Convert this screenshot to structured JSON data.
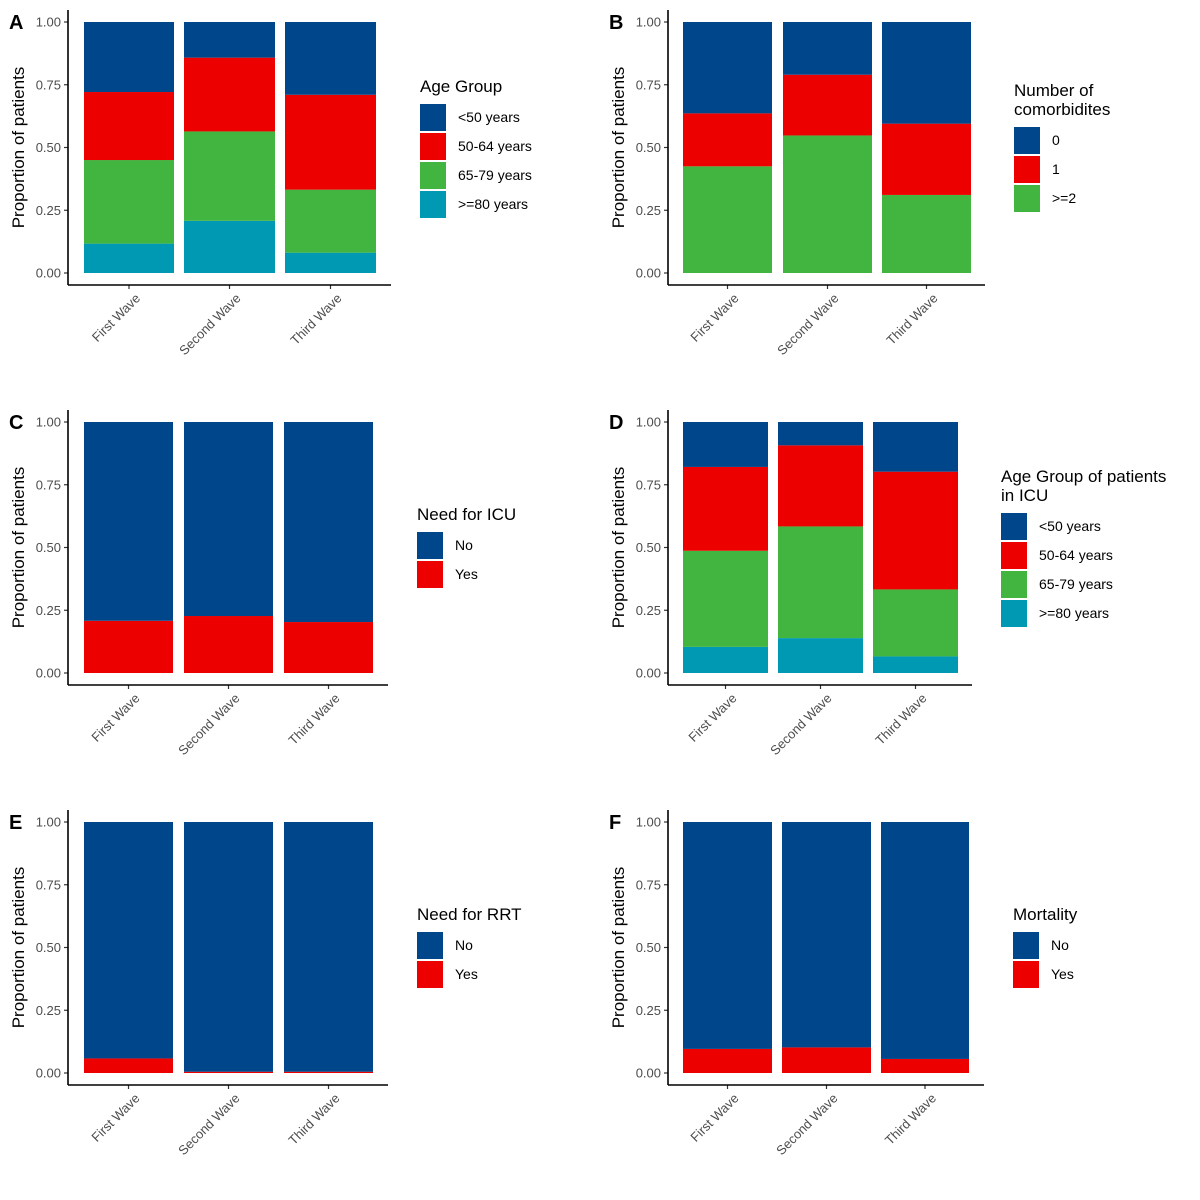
{
  "figure": {
    "palette": {
      "navy": "#00468B",
      "red": "#ED0000",
      "green": "#42B540",
      "teal": "#0099B4"
    }
  },
  "chart_data": [
    {
      "panel": "A",
      "type": "bar",
      "stacked": "fill",
      "title": "",
      "xlabel": "",
      "ylabel": "Proportion of patients",
      "ylim": [
        0,
        1
      ],
      "yticks": [
        "0.00",
        "0.25",
        "0.50",
        "0.75",
        "1.00"
      ],
      "categories": [
        "First Wave",
        "Second Wave",
        "Third Wave"
      ],
      "legend_title": "Age Group",
      "legend_position": "right",
      "series": [
        {
          "name": "<50 years",
          "color": "#00468B",
          "values": [
            0.279,
            0.142,
            0.29
          ]
        },
        {
          "name": "50-64 years",
          "color": "#ED0000",
          "values": [
            0.271,
            0.294,
            0.378
          ]
        },
        {
          "name": "65-79 years",
          "color": "#42B540",
          "values": [
            0.333,
            0.356,
            0.251
          ]
        },
        {
          "name": ">=80 years",
          "color": "#0099B4",
          "values": [
            0.117,
            0.208,
            0.081
          ]
        }
      ]
    },
    {
      "panel": "B",
      "type": "bar",
      "stacked": "fill",
      "title": "",
      "xlabel": "",
      "ylabel": "Proportion of patients",
      "ylim": [
        0,
        1
      ],
      "yticks": [
        "0.00",
        "0.25",
        "0.50",
        "0.75",
        "1.00"
      ],
      "categories": [
        "First Wave",
        "Second Wave",
        "Third Wave"
      ],
      "legend_title": "Number of\ncomorbidites",
      "legend_position": "right",
      "series": [
        {
          "name": "0",
          "color": "#00468B",
          "values": [
            0.364,
            0.21,
            0.405
          ]
        },
        {
          "name": "1",
          "color": "#ED0000",
          "values": [
            0.211,
            0.242,
            0.284
          ]
        },
        {
          "name": ">=2",
          "color": "#42B540",
          "values": [
            0.425,
            0.548,
            0.311
          ]
        }
      ]
    },
    {
      "panel": "C",
      "type": "bar",
      "stacked": "fill",
      "title": "",
      "xlabel": "",
      "ylabel": "Proportion of patients",
      "ylim": [
        0,
        1
      ],
      "yticks": [
        "0.00",
        "0.25",
        "0.50",
        "0.75",
        "1.00"
      ],
      "categories": [
        "First Wave",
        "Second Wave",
        "Third Wave"
      ],
      "legend_title": "Need for ICU",
      "legend_position": "right",
      "series": [
        {
          "name": "No",
          "color": "#00468B",
          "values": [
            0.792,
            0.773,
            0.797
          ]
        },
        {
          "name": "Yes",
          "color": "#ED0000",
          "values": [
            0.208,
            0.227,
            0.203
          ]
        }
      ]
    },
    {
      "panel": "D",
      "type": "bar",
      "stacked": "fill",
      "title": "",
      "xlabel": "",
      "ylabel": "Proportion of patients",
      "ylim": [
        0,
        1
      ],
      "yticks": [
        "0.00",
        "0.25",
        "0.50",
        "0.75",
        "1.00"
      ],
      "categories": [
        "First Wave",
        "Second Wave",
        "Third Wave"
      ],
      "legend_title": "Age Group of patients\n in ICU",
      "legend_position": "right",
      "series": [
        {
          "name": "<50 years",
          "color": "#00468B",
          "values": [
            0.179,
            0.093,
            0.198
          ]
        },
        {
          "name": "50-64 years",
          "color": "#ED0000",
          "values": [
            0.334,
            0.323,
            0.469
          ]
        },
        {
          "name": "65-79 years",
          "color": "#42B540",
          "values": [
            0.383,
            0.445,
            0.267
          ]
        },
        {
          "name": ">=80 years",
          "color": "#0099B4",
          "values": [
            0.104,
            0.139,
            0.066
          ]
        }
      ]
    },
    {
      "panel": "E",
      "type": "bar",
      "stacked": "fill",
      "title": "",
      "xlabel": "",
      "ylabel": "Proportion of patients",
      "ylim": [
        0,
        1
      ],
      "yticks": [
        "0.00",
        "0.25",
        "0.50",
        "0.75",
        "1.00"
      ],
      "categories": [
        "First Wave",
        "Second Wave",
        "Third Wave"
      ],
      "legend_title": "Need for RRT",
      "legend_position": "right",
      "series": [
        {
          "name": "No",
          "color": "#00468B",
          "values": [
            0.942,
            0.995,
            0.995
          ]
        },
        {
          "name": "Yes",
          "color": "#ED0000",
          "values": [
            0.058,
            0.005,
            0.005
          ]
        }
      ]
    },
    {
      "panel": "F",
      "type": "bar",
      "stacked": "fill",
      "title": "",
      "xlabel": "",
      "ylabel": "Proportion of patients",
      "ylim": [
        0,
        1
      ],
      "yticks": [
        "0.00",
        "0.25",
        "0.50",
        "0.75",
        "1.00"
      ],
      "categories": [
        "First Wave",
        "Second Wave",
        "Third Wave"
      ],
      "legend_title": "Mortality",
      "legend_position": "right",
      "series": [
        {
          "name": "No",
          "color": "#00468B",
          "values": [
            0.904,
            0.898,
            0.944
          ]
        },
        {
          "name": "Yes",
          "color": "#ED0000",
          "values": [
            0.096,
            0.102,
            0.056
          ]
        }
      ]
    }
  ]
}
